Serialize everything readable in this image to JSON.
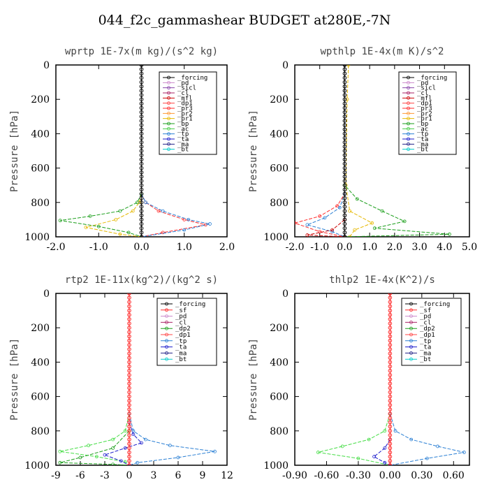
{
  "title": "044_f2c_gammashear  BUDGET at280E,-7N",
  "chart_data": [
    {
      "type": "line",
      "title": "wprtp  1E-7x(m kg)/(s^2 kg)",
      "ylabel": "Pressure [hPa]",
      "xlim": [
        -2.0,
        2.0
      ],
      "ylim": [
        1000,
        0
      ],
      "xticks": [
        "-2.0",
        "-1.0",
        "0.0",
        "1.0",
        "2.0"
      ],
      "yticks": [
        "0",
        "200",
        "400",
        "600",
        "800",
        "1000"
      ],
      "legend": [
        "_forcing",
        "_pd",
        "_sicl",
        "_cl",
        "_mfl",
        "_dp1",
        "_pr3",
        "_pr2",
        "_pr1",
        "_bp",
        "_ac",
        "_tp",
        "_ta",
        "_ma",
        "_bt"
      ],
      "series": [
        {
          "name": "_pr1",
          "color": "#e6b800",
          "points": [
            [
              0,
              750
            ],
            [
              -0.05,
              800
            ],
            [
              -0.2,
              850
            ],
            [
              -0.6,
              900
            ],
            [
              -1.3,
              945
            ],
            [
              -0.5,
              985
            ],
            [
              0,
              1000
            ]
          ]
        },
        {
          "name": "_pr3",
          "color": "#ff2a2a",
          "points": [
            [
              0,
              750
            ],
            [
              0.1,
              800
            ],
            [
              0.4,
              850
            ],
            [
              1.0,
              900
            ],
            [
              1.5,
              930
            ],
            [
              0.5,
              975
            ],
            [
              0,
              1000
            ]
          ]
        },
        {
          "name": "_tp",
          "color": "#2a7fd4",
          "points": [
            [
              0,
              750
            ],
            [
              0.1,
              800
            ],
            [
              0.5,
              850
            ],
            [
              1.1,
              900
            ],
            [
              1.6,
              925
            ],
            [
              1.0,
              960
            ],
            [
              0,
              1000
            ]
          ]
        },
        {
          "name": "_bp",
          "color": "#1a9e1a",
          "points": [
            [
              0,
              750
            ],
            [
              -0.1,
              800
            ],
            [
              -0.5,
              850
            ],
            [
              -1.2,
              880
            ],
            [
              -1.9,
              905
            ],
            [
              -1.0,
              940
            ],
            [
              -0.3,
              975
            ],
            [
              0,
              1000
            ]
          ]
        },
        {
          "name": "_forcing",
          "color": "#000000",
          "points": [
            [
              0,
              0
            ],
            [
              0,
              1000
            ]
          ]
        }
      ]
    },
    {
      "type": "line",
      "title": "wpthlp  1E-4x(m K)/s^2",
      "ylabel": "Pressure [hPa]",
      "xlim": [
        -2.0,
        5.0
      ],
      "ylim": [
        1000,
        0
      ],
      "xticks": [
        "-2.0",
        "-1.0",
        "0.0",
        "1.0",
        "2.0",
        "3.0",
        "4.0",
        "5.0"
      ],
      "yticks": [
        "0",
        "200",
        "400",
        "600",
        "800",
        "1000"
      ],
      "legend": [
        "_forcing",
        "_pd",
        "_sicl",
        "_cl",
        "_mfl",
        "_dp1",
        "_pr3",
        "_pr2",
        "_pr1",
        "_bp",
        "_ac",
        "_tp",
        "_ta",
        "_ma",
        "_bt"
      ],
      "series": [
        {
          "name": "_pr1",
          "color": "#e6b800",
          "points": [
            [
              0.15,
              0
            ],
            [
              0.1,
              200
            ],
            [
              0.05,
              700
            ],
            [
              0.2,
              850
            ],
            [
              1.1,
              920
            ],
            [
              0.4,
              960
            ],
            [
              0.2,
              1000
            ]
          ]
        },
        {
          "name": "_bp",
          "color": "#1a9e1a",
          "points": [
            [
              0,
              0
            ],
            [
              0,
              700
            ],
            [
              0.5,
              780
            ],
            [
              1.5,
              850
            ],
            [
              2.4,
              910
            ],
            [
              1.2,
              950
            ],
            [
              4.2,
              985
            ],
            [
              0,
              1000
            ]
          ]
        },
        {
          "name": "_pr3",
          "color": "#ff2a2a",
          "points": [
            [
              0,
              0
            ],
            [
              0,
              750
            ],
            [
              -0.3,
              820
            ],
            [
              -1.0,
              880
            ],
            [
              -2.0,
              920
            ],
            [
              -1.0,
              970
            ],
            [
              0,
              1000
            ]
          ]
        },
        {
          "name": "_tp",
          "color": "#2a7fd4",
          "points": [
            [
              0,
              0
            ],
            [
              0,
              750
            ],
            [
              -0.2,
              830
            ],
            [
              -0.8,
              890
            ],
            [
              -1.5,
              930
            ],
            [
              -0.5,
              970
            ],
            [
              0,
              1000
            ]
          ]
        },
        {
          "name": "_dp1",
          "color": "#cc0000",
          "points": [
            [
              0,
              900
            ],
            [
              -0.5,
              960
            ],
            [
              -1.5,
              990
            ],
            [
              0,
              1000
            ]
          ]
        },
        {
          "name": "_forcing",
          "color": "#000000",
          "points": [
            [
              0,
              0
            ],
            [
              0,
              1000
            ]
          ]
        }
      ]
    },
    {
      "type": "line",
      "title": "rtp2  1E-11x(kg^2)/(kg^2 s)",
      "ylabel": "Pressure [hPa]",
      "xlim": [
        -9,
        12
      ],
      "ylim": [
        1000,
        0
      ],
      "xticks": [
        "-9",
        "-6",
        "-3",
        "0",
        "3",
        "6",
        "9",
        "12"
      ],
      "yticks": [
        "0",
        "200",
        "400",
        "600",
        "800",
        "1000"
      ],
      "legend": [
        "_forcing",
        "_sf",
        "_pd",
        "_cl",
        "_dp2",
        "_dp1",
        "_tp",
        "_ta",
        "_ma",
        "_bt"
      ],
      "series": [
        {
          "name": "_dp1",
          "color": "#44dd44",
          "points": [
            [
              0,
              700
            ],
            [
              -0.5,
              800
            ],
            [
              -2,
              850
            ],
            [
              -5,
              885
            ],
            [
              -8.5,
              920
            ],
            [
              -4,
              950
            ],
            [
              -0.5,
              980
            ],
            [
              0,
              1000
            ]
          ]
        },
        {
          "name": "_dp2",
          "color": "#1a9e1a",
          "points": [
            [
              0,
              800
            ],
            [
              -2,
              900
            ],
            [
              -6,
              955
            ],
            [
              -8.5,
              985
            ],
            [
              -2,
              995
            ],
            [
              0,
              1000
            ]
          ]
        },
        {
          "name": "_tp",
          "color": "#2a7fd4",
          "points": [
            [
              0,
              700
            ],
            [
              0.5,
              800
            ],
            [
              2,
              850
            ],
            [
              5,
              885
            ],
            [
              10.5,
              920
            ],
            [
              6,
              955
            ],
            [
              1,
              985
            ],
            [
              0,
              1000
            ]
          ]
        },
        {
          "name": "_ta",
          "color": "#1a1acc",
          "points": [
            [
              0,
              750
            ],
            [
              0.5,
              820
            ],
            [
              1.5,
              870
            ],
            [
              -0.5,
              900
            ],
            [
              -3,
              940
            ],
            [
              -1,
              975
            ],
            [
              0,
              1000
            ]
          ]
        },
        {
          "name": "_sf",
          "color": "#ff2a2a",
          "points": [
            [
              0,
              0
            ],
            [
              0,
              1000
            ]
          ]
        }
      ]
    },
    {
      "type": "line",
      "title": "thlp2  1E-4x(K^2)/s",
      "ylabel": "Pressure [hPa]",
      "xlim": [
        -0.9,
        0.75
      ],
      "ylim": [
        1000,
        0
      ],
      "xticks": [
        "-0.90",
        "-0.60",
        "-0.30",
        "0.00",
        "0.30",
        "0.60"
      ],
      "yticks": [
        "0",
        "200",
        "400",
        "600",
        "800",
        "1000"
      ],
      "legend": [
        "_forcing",
        "_sf",
        "_pd",
        "_cl",
        "_dp2",
        "_dp1",
        "_tp",
        "_ta",
        "_ma",
        "_bt"
      ],
      "series": [
        {
          "name": "_dp1",
          "color": "#44dd44",
          "points": [
            [
              0,
              700
            ],
            [
              -0.05,
              800
            ],
            [
              -0.2,
              850
            ],
            [
              -0.45,
              890
            ],
            [
              -0.68,
              925
            ],
            [
              -0.3,
              960
            ],
            [
              0,
              1000
            ]
          ]
        },
        {
          "name": "_tp",
          "color": "#2a7fd4",
          "points": [
            [
              0,
              700
            ],
            [
              0.05,
              800
            ],
            [
              0.2,
              850
            ],
            [
              0.45,
              890
            ],
            [
              0.7,
              925
            ],
            [
              0.35,
              960
            ],
            [
              0,
              1000
            ]
          ]
        },
        {
          "name": "_ta",
          "color": "#1a1acc",
          "points": [
            [
              0,
              850
            ],
            [
              -0.05,
              900
            ],
            [
              -0.15,
              950
            ],
            [
              -0.05,
              985
            ],
            [
              0,
              1000
            ]
          ]
        },
        {
          "name": "_sf",
          "color": "#ff2a2a",
          "points": [
            [
              0,
              0
            ],
            [
              0,
              1000
            ]
          ]
        }
      ]
    }
  ]
}
